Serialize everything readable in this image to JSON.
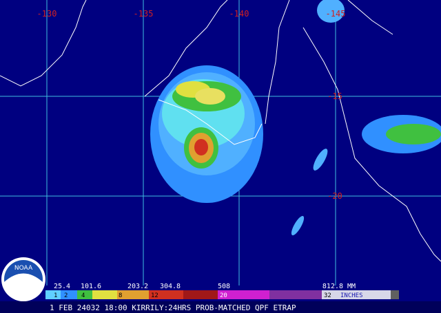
{
  "map": {
    "longitude_labels": [
      "-130",
      "-135",
      "-140",
      "-145"
    ],
    "latitude_labels": [
      "-15",
      "-20"
    ]
  },
  "legend": {
    "mm_labels": [
      "25.4",
      "101.6",
      "203.2",
      "304.8",
      "508",
      "812.8 MM"
    ],
    "inch_labels": [
      "1",
      "2",
      "4",
      "8",
      "12",
      "20",
      "32",
      "INCHES"
    ]
  },
  "caption": "1 FEB 24032 18:00 KIRRILY:24HRS PROB-MATCHED QPF ETRAP",
  "logo": "NOAA"
}
